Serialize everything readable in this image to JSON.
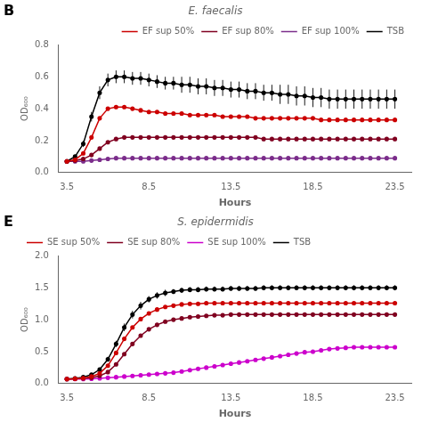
{
  "chart_data": [
    {
      "type": "line",
      "title": "E. faecalis",
      "annotations": [
        "B"
      ],
      "xlabel": "Hours",
      "ylabel": "OD₆₀₀",
      "xlim": [
        3.0,
        24.5
      ],
      "xticks": [
        3.5,
        8.5,
        13.5,
        18.5,
        23.5
      ],
      "ylim": [
        0,
        0.8
      ],
      "yticks": [
        {
          "value": 0.0,
          "label": "0.0"
        },
        0.2,
        0.4,
        0.6,
        0.8
      ],
      "grid": false,
      "legend": "upper right",
      "marker": "circle",
      "line_style": "solid",
      "x": [
        3.5,
        4.0,
        4.5,
        5.0,
        5.5,
        6.0,
        6.5,
        7.0,
        7.5,
        8.0,
        8.5,
        9.0,
        9.5,
        10.0,
        10.5,
        11.0,
        11.5,
        12.0,
        12.5,
        13.0,
        13.5,
        14.0,
        14.5,
        15.0,
        15.5,
        16.0,
        16.5,
        17.0,
        17.5,
        18.0,
        18.5,
        19.0,
        19.5,
        20.0,
        20.5,
        21.0,
        21.5,
        22.0,
        22.5,
        23.0,
        23.5
      ],
      "series": [
        {
          "name": "EF sup 50%",
          "color": "#CC0000",
          "values": [
            0.07,
            0.08,
            0.12,
            0.22,
            0.34,
            0.4,
            0.41,
            0.41,
            0.4,
            0.39,
            0.38,
            0.38,
            0.37,
            0.37,
            0.37,
            0.36,
            0.36,
            0.36,
            0.36,
            0.35,
            0.35,
            0.35,
            0.35,
            0.34,
            0.34,
            0.34,
            0.34,
            0.34,
            0.34,
            0.34,
            0.34,
            0.33,
            0.33,
            0.33,
            0.33,
            0.33,
            0.33,
            0.33,
            0.33,
            0.33,
            0.33
          ]
        },
        {
          "name": "EF sup 80%",
          "color": "#800020",
          "values": [
            0.07,
            0.075,
            0.085,
            0.11,
            0.15,
            0.19,
            0.21,
            0.22,
            0.22,
            0.22,
            0.22,
            0.22,
            0.22,
            0.22,
            0.22,
            0.22,
            0.22,
            0.22,
            0.22,
            0.22,
            0.22,
            0.22,
            0.22,
            0.22,
            0.21,
            0.21,
            0.21,
            0.21,
            0.21,
            0.21,
            0.21,
            0.21,
            0.21,
            0.21,
            0.21,
            0.21,
            0.21,
            0.21,
            0.21,
            0.21,
            0.21
          ]
        },
        {
          "name": "EF sup 100%",
          "color": "#7B2D8B",
          "values": [
            0.07,
            0.07,
            0.07,
            0.075,
            0.08,
            0.085,
            0.09,
            0.09,
            0.09,
            0.09,
            0.09,
            0.09,
            0.09,
            0.09,
            0.09,
            0.09,
            0.09,
            0.09,
            0.09,
            0.09,
            0.09,
            0.09,
            0.09,
            0.09,
            0.09,
            0.09,
            0.09,
            0.09,
            0.09,
            0.09,
            0.09,
            0.09,
            0.09,
            0.09,
            0.09,
            0.09,
            0.09,
            0.09,
            0.09,
            0.09,
            0.09
          ]
        },
        {
          "name": "TSB",
          "color": "#000000",
          "values": [
            0.07,
            0.1,
            0.18,
            0.35,
            0.5,
            0.58,
            0.6,
            0.6,
            0.59,
            0.59,
            0.58,
            0.57,
            0.56,
            0.56,
            0.55,
            0.55,
            0.54,
            0.54,
            0.53,
            0.53,
            0.52,
            0.52,
            0.51,
            0.51,
            0.5,
            0.5,
            0.49,
            0.49,
            0.48,
            0.48,
            0.47,
            0.47,
            0.46,
            0.46,
            0.46,
            0.46,
            0.46,
            0.46,
            0.46,
            0.46,
            0.46
          ],
          "yerr": [
            0.01,
            0.01,
            0.02,
            0.03,
            0.04,
            0.04,
            0.04,
            0.04,
            0.04,
            0.04,
            0.04,
            0.04,
            0.04,
            0.04,
            0.05,
            0.05,
            0.05,
            0.05,
            0.05,
            0.05,
            0.05,
            0.05,
            0.05,
            0.05,
            0.05,
            0.05,
            0.06,
            0.06,
            0.06,
            0.06,
            0.06,
            0.06,
            0.06,
            0.06,
            0.06,
            0.06,
            0.06,
            0.06,
            0.06,
            0.06,
            0.06
          ]
        }
      ]
    },
    {
      "type": "line",
      "title": "S. epidermidis",
      "annotations": [
        "E"
      ],
      "xlabel": "Hours",
      "ylabel": "OD₆₀₀",
      "xlim": [
        3.0,
        24.5
      ],
      "xticks": [
        3.5,
        8.5,
        13.5,
        18.5,
        23.5
      ],
      "ylim": [
        0,
        2.0
      ],
      "yticks": [
        {
          "value": 0.0,
          "label": "0.0"
        },
        0.5,
        {
          "value": 1.0,
          "label": "1.0"
        },
        1.5,
        {
          "value": 2.0,
          "label": "2.0"
        }
      ],
      "grid": false,
      "legend": "upper left",
      "marker": "circle",
      "line_style": "solid",
      "x": [
        3.5,
        4.0,
        4.5,
        5.0,
        5.5,
        6.0,
        6.5,
        7.0,
        7.5,
        8.0,
        8.5,
        9.0,
        9.5,
        10.0,
        10.5,
        11.0,
        11.5,
        12.0,
        12.5,
        13.0,
        13.5,
        14.0,
        14.5,
        15.0,
        15.5,
        16.0,
        16.5,
        17.0,
        17.5,
        18.0,
        18.5,
        19.0,
        19.5,
        20.0,
        20.5,
        21.0,
        21.5,
        22.0,
        22.5,
        23.0,
        23.5
      ],
      "series": [
        {
          "name": "SE sup 50%",
          "color": "#CC0000",
          "values": [
            0.07,
            0.075,
            0.085,
            0.11,
            0.16,
            0.28,
            0.48,
            0.7,
            0.88,
            1.01,
            1.1,
            1.16,
            1.2,
            1.22,
            1.24,
            1.25,
            1.25,
            1.26,
            1.26,
            1.26,
            1.26,
            1.26,
            1.26,
            1.26,
            1.26,
            1.26,
            1.26,
            1.26,
            1.26,
            1.26,
            1.26,
            1.26,
            1.26,
            1.26,
            1.26,
            1.26,
            1.26,
            1.26,
            1.26,
            1.26,
            1.26
          ]
        },
        {
          "name": "SE sup 80%",
          "color": "#800020",
          "values": [
            0.07,
            0.075,
            0.08,
            0.09,
            0.12,
            0.18,
            0.3,
            0.46,
            0.62,
            0.75,
            0.85,
            0.92,
            0.97,
            1.0,
            1.02,
            1.04,
            1.05,
            1.06,
            1.07,
            1.07,
            1.08,
            1.08,
            1.08,
            1.08,
            1.08,
            1.08,
            1.08,
            1.08,
            1.08,
            1.08,
            1.08,
            1.08,
            1.08,
            1.08,
            1.08,
            1.08,
            1.08,
            1.08,
            1.08,
            1.08,
            1.08
          ]
        },
        {
          "name": "SE sup 100%",
          "color": "#CC00CC",
          "values": [
            0.07,
            0.07,
            0.07,
            0.075,
            0.08,
            0.09,
            0.1,
            0.11,
            0.12,
            0.13,
            0.14,
            0.15,
            0.16,
            0.17,
            0.19,
            0.21,
            0.23,
            0.25,
            0.27,
            0.29,
            0.31,
            0.33,
            0.35,
            0.37,
            0.39,
            0.41,
            0.43,
            0.45,
            0.47,
            0.49,
            0.5,
            0.52,
            0.54,
            0.55,
            0.56,
            0.57,
            0.57,
            0.57,
            0.57,
            0.57,
            0.57
          ]
        },
        {
          "name": "TSB",
          "color": "#000000",
          "values": [
            0.07,
            0.08,
            0.1,
            0.14,
            0.22,
            0.38,
            0.62,
            0.88,
            1.08,
            1.22,
            1.32,
            1.38,
            1.42,
            1.44,
            1.46,
            1.47,
            1.47,
            1.48,
            1.48,
            1.48,
            1.49,
            1.49,
            1.49,
            1.49,
            1.5,
            1.5,
            1.5,
            1.5,
            1.5,
            1.5,
            1.5,
            1.5,
            1.5,
            1.5,
            1.5,
            1.5,
            1.5,
            1.5,
            1.5,
            1.5,
            1.5
          ],
          "yerr": [
            0.01,
            0.01,
            0.01,
            0.02,
            0.03,
            0.04,
            0.05,
            0.06,
            0.06,
            0.06,
            0.05,
            0.05,
            0.05,
            0.04,
            0.04,
            0.04,
            0.04,
            0.04,
            0.04,
            0.04,
            0.04,
            0.04,
            0.04,
            0.04,
            0.04,
            0.04,
            0.04,
            0.04,
            0.04,
            0.04,
            0.04,
            0.04,
            0.04,
            0.04,
            0.04,
            0.04,
            0.04,
            0.04,
            0.04,
            0.04,
            0.04
          ]
        }
      ]
    }
  ]
}
